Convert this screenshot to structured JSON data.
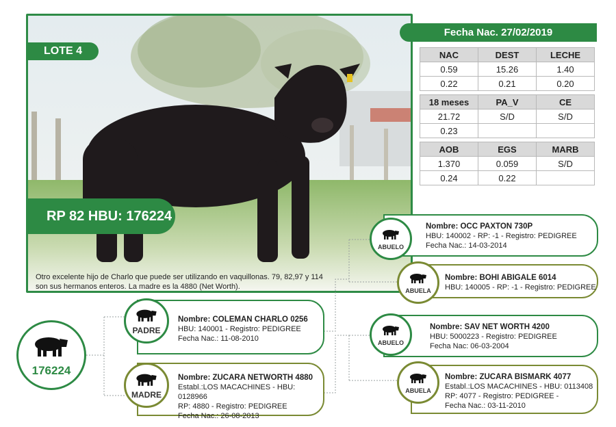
{
  "lote": "LOTE 4",
  "rp_hbu": "RP 82 HBU: 176224",
  "description": "Otro excelente hijo de Charlo que puede ser utilizando en vaquillonas. 79, 82,97 y 114 son sus hermanos enteros. La madre es la 4880 (Net Worth).",
  "fecha_nac": "Fecha Nac. 27/02/2019",
  "stats": [
    {
      "headers": [
        "NAC",
        "DEST",
        "LECHE"
      ],
      "rows": [
        [
          "0.59",
          "15.26",
          "1.40"
        ],
        [
          "0.22",
          "0.21",
          "0.20"
        ]
      ]
    },
    {
      "headers": [
        "18 meses",
        "PA_V",
        "CE"
      ],
      "rows": [
        [
          "21.72",
          "S/D",
          "S/D"
        ],
        [
          "0.23",
          "",
          ""
        ]
      ]
    },
    {
      "headers": [
        "AOB",
        "EGS",
        "MARB"
      ],
      "rows": [
        [
          "1.370",
          "0.059",
          "S/D"
        ],
        [
          "0.24",
          "0.22",
          ""
        ]
      ]
    }
  ],
  "animal_id": "176224",
  "padre": {
    "role": "PADRE",
    "lines": [
      "Nombre: COLEMAN CHARLO 0256",
      "HBU: 140001 - Registro: PEDIGREE",
      "Fecha Nac.: 11-08-2010"
    ]
  },
  "madre": {
    "role": "MADRE",
    "lines": [
      "Nombre: ZUCARA NETWORTH 4880",
      "Establ.:LOS MACACHINES - HBU: 0128966",
      "RP:  4880 - Registro: PEDIGREE",
      "Fecha Nac.: 26-08-2013"
    ]
  },
  "abuelo_p": {
    "role": "ABUELO",
    "lines": [
      "Nombre: OCC PAXTON 730P",
      "HBU: 140002 - RP: -1 - Registro: PEDIGREE",
      "Fecha Nac.: 14-03-2014"
    ]
  },
  "abuela_p": {
    "role": "ABUELA",
    "lines": [
      "Nombre: BOHI ABIGALE 6014",
      "HBU: 140005 - RP: -1 - Registro: PEDIGREE"
    ]
  },
  "abuelo_m": {
    "role": "ABUELO",
    "lines": [
      "Nombre: SAV NET WORTH 4200",
      "HBU: 5000223 - Registro: PEDIGREE",
      "Fecha Nac: 06-03-2004"
    ]
  },
  "abuela_m": {
    "role": "ABUELA",
    "lines": [
      "Nombre: ZUCARA BISMARK 4077",
      "Establ.:LOS MACACHINES - HBU: 0113408",
      "RP: 4077 - Registro: PEDIGREE -",
      "Fecha Nac.: 03-11-2010"
    ]
  },
  "colors": {
    "green": "#2d8a44",
    "olive": "#7a8a33",
    "table_header": "#d9d9d9"
  }
}
